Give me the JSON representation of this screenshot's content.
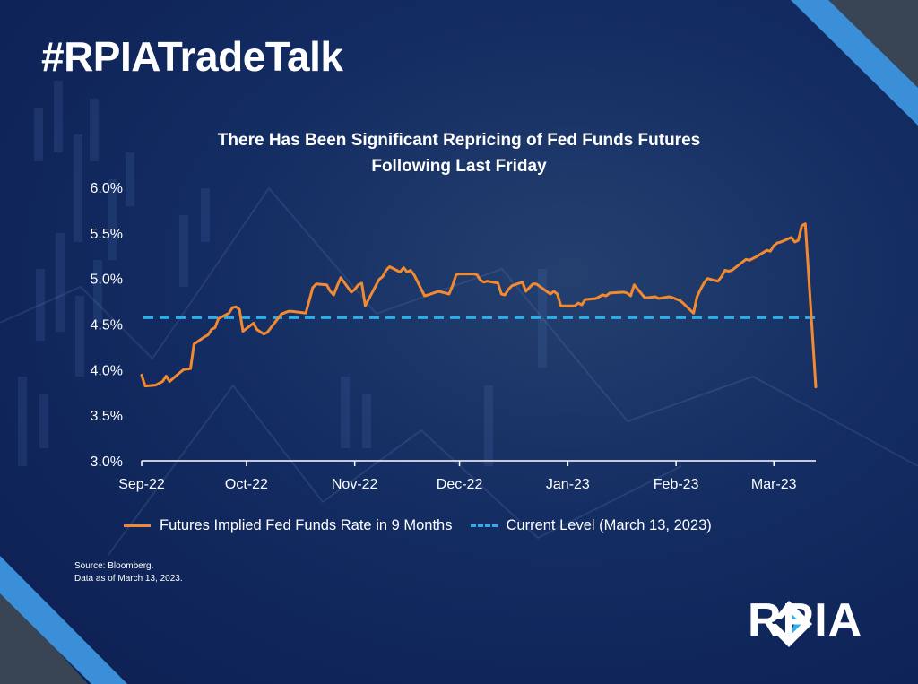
{
  "header": {
    "hashtag": "#RPIATradeTalk"
  },
  "chart_data": {
    "type": "line",
    "title": [
      "There Has Been Significant Repricing of Fed Funds Futures",
      "Following Last Friday"
    ],
    "xlabel": "",
    "ylabel": "",
    "x_ticks": [
      "Sep-22",
      "Oct-22",
      "Nov-22",
      "Dec-22",
      "Jan-23",
      "Feb-23",
      "Mar-23"
    ],
    "y_ticks": [
      "6.0%",
      "5.5%",
      "5.0%",
      "4.5%",
      "4.0%",
      "3.5%",
      "3.0%"
    ],
    "ylim": [
      3.0,
      6.0
    ],
    "xlim": [
      "2022-09-01",
      "2023-03-13"
    ],
    "grid": false,
    "legend_position": "bottom",
    "series": [
      {
        "name": "Futures Implied Fed Funds Rate in 9 Months",
        "color": "#f38a2f",
        "style": "solid",
        "points": [
          [
            "2022-09-01",
            3.94
          ],
          [
            "2022-09-02",
            3.82
          ],
          [
            "2022-09-05",
            3.83
          ],
          [
            "2022-09-07",
            3.87
          ],
          [
            "2022-09-08",
            3.93
          ],
          [
            "2022-09-09",
            3.87
          ],
          [
            "2022-09-12",
            3.97
          ],
          [
            "2022-09-13",
            4.0
          ],
          [
            "2022-09-15",
            4.01
          ],
          [
            "2022-09-16",
            4.28
          ],
          [
            "2022-09-19",
            4.36
          ],
          [
            "2022-09-20",
            4.38
          ],
          [
            "2022-09-21",
            4.44
          ],
          [
            "2022-09-22",
            4.46
          ],
          [
            "2022-09-23",
            4.56
          ],
          [
            "2022-09-26",
            4.62
          ],
          [
            "2022-09-27",
            4.68
          ],
          [
            "2022-09-28",
            4.69
          ],
          [
            "2022-09-29",
            4.66
          ],
          [
            "2022-09-30",
            4.42
          ],
          [
            "2022-10-03",
            4.51
          ],
          [
            "2022-10-04",
            4.44
          ],
          [
            "2022-10-06",
            4.39
          ],
          [
            "2022-10-07",
            4.41
          ],
          [
            "2022-10-11",
            4.61
          ],
          [
            "2022-10-13",
            4.64
          ],
          [
            "2022-10-14",
            4.64
          ],
          [
            "2022-10-18",
            4.62
          ],
          [
            "2022-10-20",
            4.9
          ],
          [
            "2022-10-21",
            4.94
          ],
          [
            "2022-10-24",
            4.93
          ],
          [
            "2022-10-25",
            4.86
          ],
          [
            "2022-10-26",
            4.82
          ],
          [
            "2022-10-27",
            4.92
          ],
          [
            "2022-10-28",
            5.01
          ],
          [
            "2022-10-31",
            4.85
          ],
          [
            "2022-11-01",
            4.88
          ],
          [
            "2022-11-02",
            4.93
          ],
          [
            "2022-11-03",
            4.95
          ],
          [
            "2022-11-04",
            4.7
          ],
          [
            "2022-11-07",
            4.92
          ],
          [
            "2022-11-08",
            4.99
          ],
          [
            "2022-11-09",
            5.02
          ],
          [
            "2022-11-10",
            5.09
          ],
          [
            "2022-11-11",
            5.13
          ],
          [
            "2022-11-14",
            5.07
          ],
          [
            "2022-11-15",
            5.12
          ],
          [
            "2022-11-16",
            5.07
          ],
          [
            "2022-11-17",
            5.09
          ],
          [
            "2022-11-18",
            5.04
          ],
          [
            "2022-11-21",
            4.81
          ],
          [
            "2022-11-22",
            4.82
          ],
          [
            "2022-11-25",
            4.86
          ],
          [
            "2022-11-28",
            4.83
          ],
          [
            "2022-11-29",
            4.92
          ],
          [
            "2022-11-30",
            5.04
          ],
          [
            "2022-12-01",
            5.05
          ],
          [
            "2022-12-05",
            5.05
          ],
          [
            "2022-12-06",
            5.04
          ],
          [
            "2022-12-07",
            4.98
          ],
          [
            "2022-12-08",
            4.96
          ],
          [
            "2022-12-09",
            4.97
          ],
          [
            "2022-12-12",
            4.95
          ],
          [
            "2022-12-13",
            4.83
          ],
          [
            "2022-12-14",
            4.82
          ],
          [
            "2022-12-15",
            4.88
          ],
          [
            "2022-12-16",
            4.92
          ],
          [
            "2022-12-19",
            4.96
          ],
          [
            "2022-12-20",
            4.86
          ],
          [
            "2022-12-21",
            4.9
          ],
          [
            "2022-12-22",
            4.94
          ],
          [
            "2022-12-23",
            4.94
          ],
          [
            "2022-12-27",
            4.83
          ],
          [
            "2022-12-28",
            4.86
          ],
          [
            "2022-12-29",
            4.83
          ],
          [
            "2022-12-30",
            4.7
          ],
          [
            "2023-01-03",
            4.7
          ],
          [
            "2023-01-04",
            4.73
          ],
          [
            "2023-01-05",
            4.71
          ],
          [
            "2023-01-06",
            4.77
          ],
          [
            "2023-01-09",
            4.78
          ],
          [
            "2023-01-10",
            4.8
          ],
          [
            "2023-01-11",
            4.82
          ],
          [
            "2023-01-12",
            4.81
          ],
          [
            "2023-01-13",
            4.84
          ],
          [
            "2023-01-17",
            4.85
          ],
          [
            "2023-01-18",
            4.84
          ],
          [
            "2023-01-19",
            4.81
          ],
          [
            "2023-01-20",
            4.93
          ],
          [
            "2023-01-23",
            4.79
          ],
          [
            "2023-01-24",
            4.79
          ],
          [
            "2023-01-26",
            4.8
          ],
          [
            "2023-01-27",
            4.78
          ],
          [
            "2023-01-30",
            4.8
          ],
          [
            "2023-01-31",
            4.79
          ],
          [
            "2023-02-02",
            4.76
          ],
          [
            "2023-02-03",
            4.73
          ],
          [
            "2023-02-06",
            4.62
          ],
          [
            "2023-02-07",
            4.8
          ],
          [
            "2023-02-08",
            4.88
          ],
          [
            "2023-02-09",
            4.95
          ],
          [
            "2023-02-10",
            5.0
          ],
          [
            "2023-02-13",
            4.97
          ],
          [
            "2023-02-14",
            5.02
          ],
          [
            "2023-02-15",
            5.09
          ],
          [
            "2023-02-16",
            5.08
          ],
          [
            "2023-02-17",
            5.09
          ],
          [
            "2023-02-21",
            5.21
          ],
          [
            "2023-02-22",
            5.2
          ],
          [
            "2023-02-23",
            5.22
          ],
          [
            "2023-02-24",
            5.24
          ],
          [
            "2023-02-27",
            5.31
          ],
          [
            "2023-02-28",
            5.3
          ],
          [
            "2023-03-01",
            5.36
          ],
          [
            "2023-03-02",
            5.39
          ],
          [
            "2023-03-03",
            5.4
          ],
          [
            "2023-03-06",
            5.45
          ],
          [
            "2023-03-07",
            5.4
          ],
          [
            "2023-03-08",
            5.42
          ],
          [
            "2023-03-09",
            5.58
          ],
          [
            "2023-03-10",
            5.6
          ],
          [
            "2023-03-13",
            3.81
          ]
        ]
      },
      {
        "name": "Current Level (March 13, 2023)",
        "color": "#27b2ee",
        "style": "dashed",
        "value": 4.57
      }
    ]
  },
  "source": {
    "line1": "Source: Bloomberg.",
    "line2": "Data as of March 13, 2023."
  },
  "logo": {
    "text": "RPIA",
    "colors": {
      "white": "#ffffff",
      "accent": "#27b2ee"
    }
  },
  "colors": {
    "background": "#132c62",
    "accent_stripe": "#3a8fd8",
    "corner": "#394554"
  }
}
